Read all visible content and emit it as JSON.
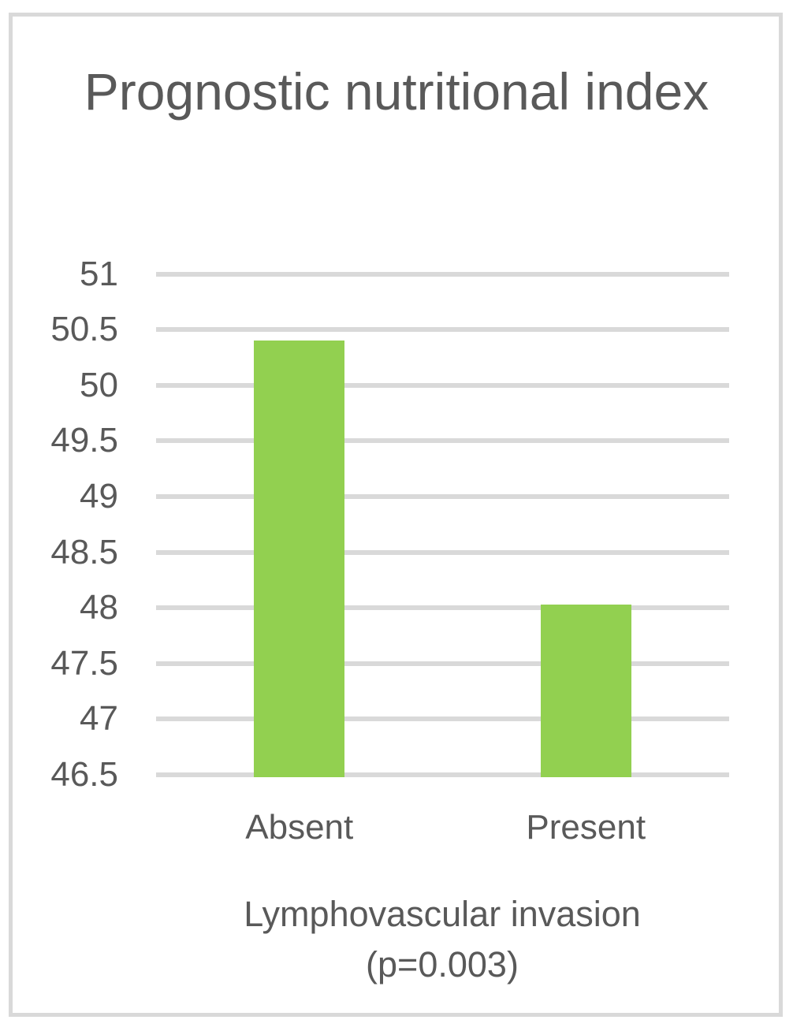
{
  "chart_data": {
    "type": "bar",
    "title": "Prognostic nutritional index",
    "categories": [
      "Absent",
      "Present"
    ],
    "values": [
      50.4,
      48.03
    ],
    "xlabel": "Lymphovascular invasion",
    "xlabel_note": "(p=0.003)",
    "ylabel": "",
    "ylim": [
      46.5,
      51
    ],
    "ytick_step": 0.5,
    "yticks": [
      "51",
      "50.5",
      "50",
      "49.5",
      "49",
      "48.5",
      "48",
      "47.5",
      "47",
      "46.5"
    ],
    "grid": true,
    "legend_position": "none",
    "colors": {
      "bar": "#92D050",
      "gridline": "#D9D9D9",
      "text": "#595959",
      "frame_border": "#D9D9D9",
      "background": "#FFFFFF"
    }
  }
}
